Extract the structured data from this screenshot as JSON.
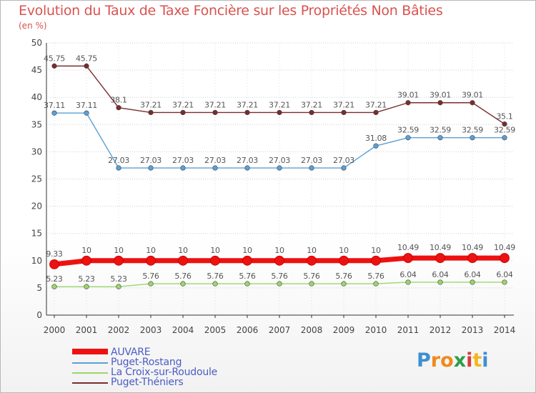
{
  "chart_data": {
    "type": "line",
    "title": "Evolution du Taux de Taxe Foncière sur les Propriétés Non Bâties",
    "subtitle": "(en %)",
    "xlabel": "",
    "ylabel": "",
    "categories": [
      "2000",
      "2001",
      "2002",
      "2003",
      "2004",
      "2005",
      "2006",
      "2007",
      "2008",
      "2009",
      "2010",
      "2011",
      "2012",
      "2013",
      "2014"
    ],
    "ylim": [
      0,
      50
    ],
    "yticks": [
      0,
      5,
      10,
      15,
      20,
      25,
      30,
      35,
      40,
      45,
      50
    ],
    "grid": "horizontal dotted",
    "legend_position": "bottom-left",
    "series": [
      {
        "name": "AUVARE",
        "color": "#ee1111",
        "values": [
          9.33,
          10,
          10,
          10,
          10,
          10,
          10,
          10,
          10,
          10,
          10,
          10.49,
          10.49,
          10.49,
          10.49
        ],
        "labels": [
          "9.33",
          "10",
          "10",
          "10",
          "10",
          "10",
          "10",
          "10",
          "10",
          "10",
          "10",
          "10.49",
          "10.49",
          "10.49",
          "10.49"
        ]
      },
      {
        "name": "Puget-Rostang",
        "color": "#5aa0d6",
        "values": [
          37.11,
          37.11,
          27.03,
          27.03,
          27.03,
          27.03,
          27.03,
          27.03,
          27.03,
          27.03,
          31.08,
          32.59,
          32.59,
          32.59,
          32.59
        ],
        "labels": [
          "37.11",
          "37.11",
          "27.03",
          "27.03",
          "27.03",
          "27.03",
          "27.03",
          "27.03",
          "27.03",
          "27.03",
          "31.08",
          "32.59",
          "32.59",
          "32.59",
          "32.59"
        ]
      },
      {
        "name": "La Croix-sur-Roudoule",
        "color": "#9cd66a",
        "values": [
          5.23,
          5.23,
          5.23,
          5.76,
          5.76,
          5.76,
          5.76,
          5.76,
          5.76,
          5.76,
          5.76,
          6.04,
          6.04,
          6.04,
          6.04
        ],
        "labels": [
          "5.23",
          "5.23",
          "5.23",
          "5.76",
          "5.76",
          "5.76",
          "5.76",
          "5.76",
          "5.76",
          "5.76",
          "5.76",
          "6.04",
          "6.04",
          "6.04",
          "6.04"
        ]
      },
      {
        "name": "Puget-Théniers",
        "color": "#7a2c2c",
        "values": [
          45.75,
          45.75,
          38.1,
          37.21,
          37.21,
          37.21,
          37.21,
          37.21,
          37.21,
          37.21,
          37.21,
          39.01,
          39.01,
          39.01,
          35.1
        ],
        "labels": [
          "45.75",
          "45.75",
          "38.1",
          "37.21",
          "37.21",
          "37.21",
          "37.21",
          "37.21",
          "37.21",
          "37.21",
          "37.21",
          "39.01",
          "39.01",
          "39.01",
          "35.1"
        ]
      }
    ]
  },
  "legend": {
    "items": [
      {
        "name": "AUVARE",
        "color": "#ee1111"
      },
      {
        "name": "Puget-Rostang",
        "color": "#5aa0d6"
      },
      {
        "name": "La Croix-sur-Roudoule",
        "color": "#9cd66a"
      },
      {
        "name": "Puget-Théniers",
        "color": "#7a2c2c"
      }
    ]
  },
  "brand": {
    "letters": [
      "P",
      "r",
      "o",
      "x",
      "i",
      "t",
      "i"
    ],
    "colors": [
      "#3f8fd2",
      "#f08a1c",
      "#f08a1c",
      "#2e9e4a",
      "#d93a3a",
      "#f2b71d",
      "#3f8fd2"
    ]
  }
}
